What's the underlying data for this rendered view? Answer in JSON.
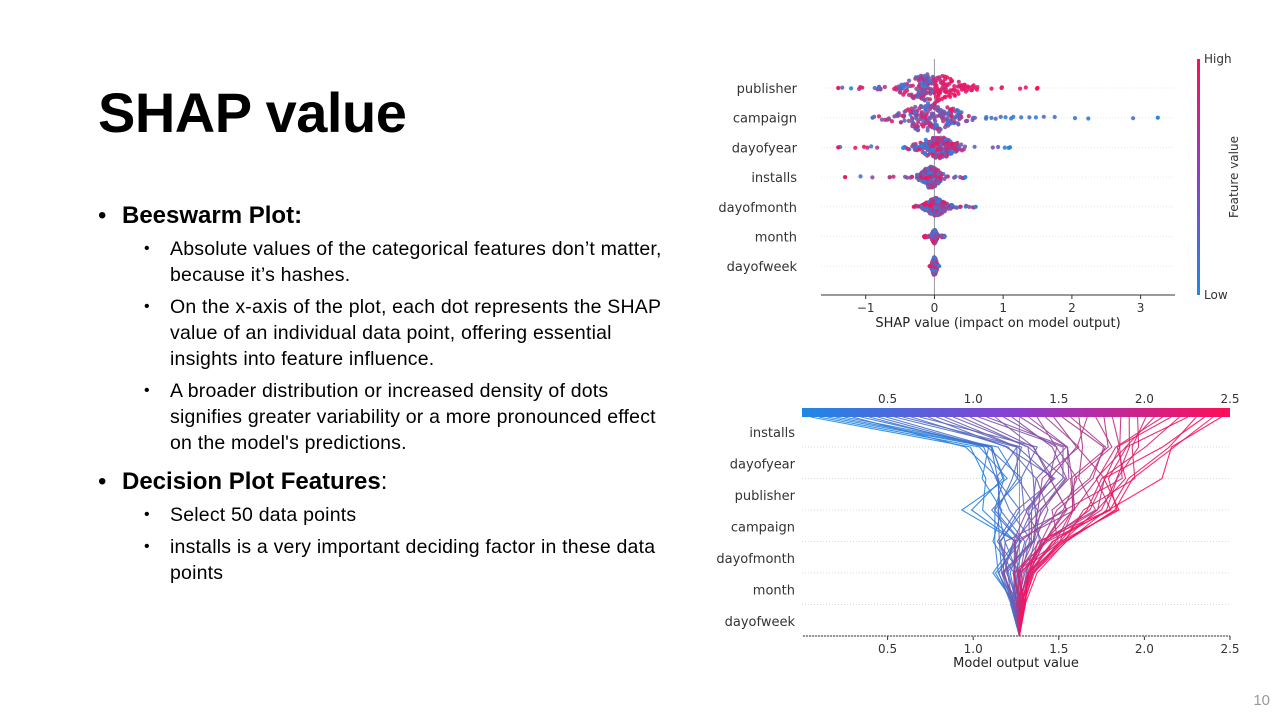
{
  "slide": {
    "title": "SHAP value",
    "page_number": "10",
    "bullets": [
      {
        "heading": "Beeswarm Plot:",
        "tail": "",
        "items": [
          "Absolute values of the categorical  features don’t matter, because it’s hashes.",
          "On the x-axis of the plot, each dot represents the SHAP value of an individual data point, offering essential insights into feature influence.",
          "A broader distribution or increased density of dots signifies greater variability or a more pronounced effect on the model's predictions."
        ]
      },
      {
        "heading": "Decision Plot Features",
        "tail": ":",
        "items": [
          "Select 50 data points",
          "installs is a very important deciding factor in these data points"
        ]
      }
    ]
  },
  "colors": {
    "low": "#1e88e5",
    "high": "#ff0d57"
  },
  "chart_data": [
    {
      "type": "scatter",
      "subtype": "beeswarm",
      "xlabel": "SHAP value (impact on model output)",
      "ylabel": "",
      "features": [
        "publisher",
        "campaign",
        "dayofyear",
        "installs",
        "dayofmonth",
        "month",
        "dayofweek"
      ],
      "xticks": [
        -1,
        0,
        1,
        2,
        3
      ],
      "xtick_labels": [
        "−1",
        "0",
        "1",
        "2",
        "3"
      ],
      "xlim": [
        -1.65,
        3.5
      ],
      "colorbar": {
        "label": "Feature value",
        "high": "High",
        "low": "Low"
      },
      "ranges": [
        {
          "feature": "publisher",
          "min": -1.4,
          "max": 1.5
        },
        {
          "feature": "campaign",
          "min": -0.9,
          "max": 3.25
        },
        {
          "feature": "dayofyear",
          "min": -1.4,
          "max": 1.1
        },
        {
          "feature": "installs",
          "min": -1.3,
          "max": 0.45
        },
        {
          "feature": "dayofmonth",
          "min": -0.3,
          "max": 0.6
        },
        {
          "feature": "month",
          "min": -0.15,
          "max": 0.15
        },
        {
          "feature": "dayofweek",
          "min": -0.07,
          "max": 0.07
        }
      ],
      "legend": "right colorbar",
      "grid": false
    },
    {
      "type": "line",
      "subtype": "decision-plot",
      "xlabel": "Model output value",
      "features": [
        "installs",
        "dayofyear",
        "publisher",
        "campaign",
        "dayofmonth",
        "month",
        "dayofweek"
      ],
      "xticks": [
        0.5,
        1.0,
        1.5,
        2.0,
        2.5
      ],
      "xtick_labels": [
        "0.5",
        "1.0",
        "1.5",
        "2.0",
        "2.5"
      ],
      "xlim": [
        0.0,
        2.5
      ],
      "base_value": 1.27,
      "sample_count": 50,
      "grid": true
    }
  ]
}
